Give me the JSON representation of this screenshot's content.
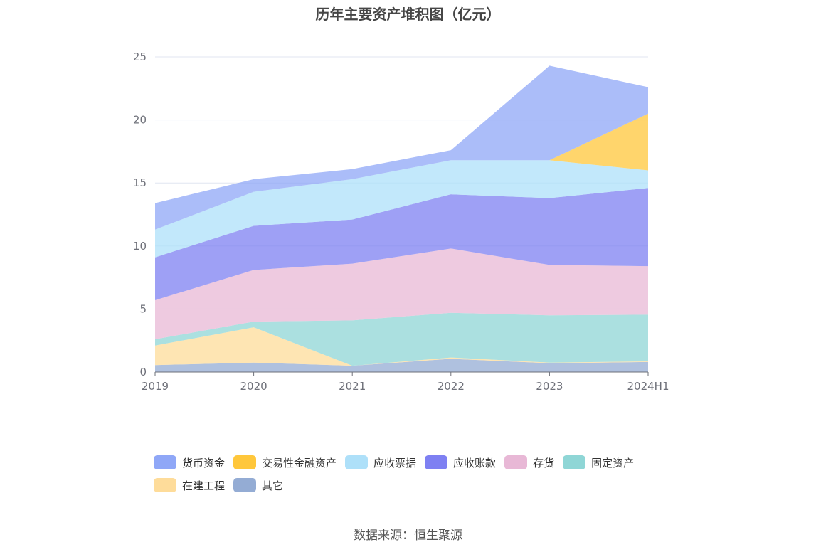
{
  "title": "历年主要资产堆积图（亿元）",
  "source": "数据来源：恒生聚源",
  "colors": {
    "货币资金": "#8fa7f7",
    "交易性金融资产": "#ffc73b",
    "应收票据": "#aee0f9",
    "应收账款": "#7e80f2",
    "存货": "#e8b8d6",
    "固定资产": "#8fd6d6",
    "在建工程": "#fedc9a",
    "其它": "#94acd4"
  },
  "chart_data": {
    "type": "area",
    "stacked": true,
    "title": "历年主要资产堆积图（亿元）",
    "x": [
      "2019",
      "2020",
      "2021",
      "2022",
      "2023",
      "2024H1"
    ],
    "ylim": [
      0,
      25
    ],
    "yticks": [
      0,
      5,
      10,
      15,
      20,
      25
    ],
    "grid": true,
    "legend_position": "bottom",
    "series": [
      {
        "name": "其它",
        "values": [
          0.55,
          0.75,
          0.5,
          1.05,
          0.7,
          0.8
        ]
      },
      {
        "name": "在建工程",
        "values": [
          1.55,
          2.8,
          0.0,
          0.1,
          0.05,
          0.05
        ]
      },
      {
        "name": "固定资产",
        "values": [
          0.5,
          0.45,
          3.6,
          3.55,
          3.75,
          3.7
        ]
      },
      {
        "name": "存货",
        "values": [
          3.1,
          4.1,
          4.5,
          5.1,
          4.0,
          3.85
        ]
      },
      {
        "name": "应收账款",
        "values": [
          3.4,
          3.5,
          3.5,
          4.3,
          5.3,
          6.2
        ]
      },
      {
        "name": "应收票据",
        "values": [
          2.2,
          2.7,
          3.2,
          2.7,
          3.0,
          1.4
        ]
      },
      {
        "name": "交易性金融资产",
        "values": [
          0.0,
          0.0,
          0.0,
          0.0,
          0.0,
          4.5
        ]
      },
      {
        "name": "货币资金",
        "values": [
          2.1,
          1.0,
          0.8,
          0.8,
          7.5,
          2.1
        ]
      }
    ]
  },
  "legend_order": [
    "货币资金",
    "交易性金融资产",
    "应收票据",
    "应收账款",
    "存货",
    "固定资产",
    "在建工程",
    "其它"
  ]
}
